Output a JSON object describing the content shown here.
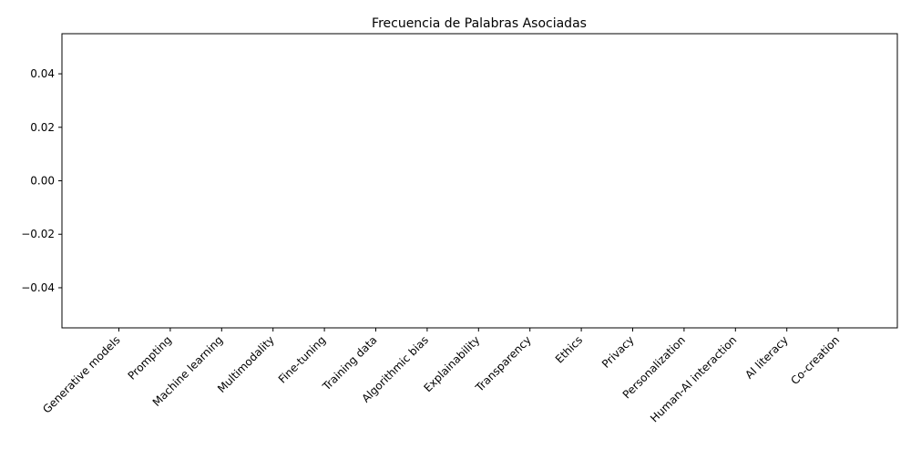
{
  "chart_data": {
    "type": "bar",
    "title": "Frecuencia de Palabras Asociadas",
    "xlabel": "",
    "ylabel": "",
    "categories": [
      "Generative models",
      "Prompting",
      "Machine learning",
      "Multimodality",
      "Fine-tuning",
      "Training data",
      "Algorithmic bias",
      "Explainability",
      "Transparency",
      "Ethics",
      "Privacy",
      "Personalization",
      "Human-AI interaction",
      "AI literacy",
      "Co-creation"
    ],
    "values": [
      0,
      0,
      0,
      0,
      0,
      0,
      0,
      0,
      0,
      0,
      0,
      0,
      0,
      0,
      0
    ],
    "ylim": [
      -0.055,
      0.055
    ],
    "yticks": [
      -0.04,
      -0.02,
      0.0,
      0.02,
      0.04
    ],
    "ytick_labels": [
      "−0.04",
      "−0.02",
      "0.00",
      "0.02",
      "0.04"
    ],
    "grid": false,
    "legend": "none",
    "colors": {
      "axis": "#000000",
      "bar": "#1f77b4"
    }
  }
}
